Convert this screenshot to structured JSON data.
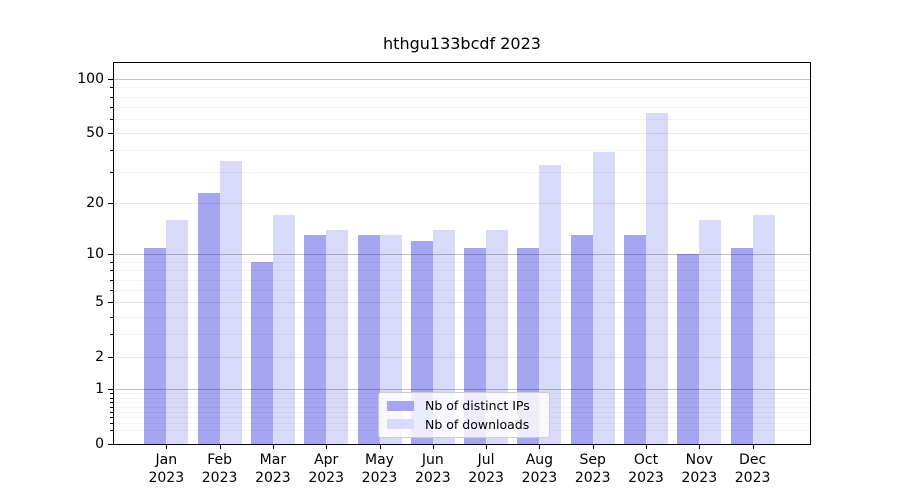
{
  "figure": {
    "background": "#ffffff"
  },
  "chart_data": {
    "type": "bar",
    "title": "hthgu133bcdf 2023",
    "categories": [
      "Jan 2023",
      "Feb 2023",
      "Mar 2023",
      "Apr 2023",
      "May 2023",
      "Jun 2023",
      "Jul 2023",
      "Aug 2023",
      "Sep 2023",
      "Oct 2023",
      "Nov 2023",
      "Dec 2023"
    ],
    "x_months": [
      "Jan",
      "Feb",
      "Mar",
      "Apr",
      "May",
      "Jun",
      "Jul",
      "Aug",
      "Sep",
      "Oct",
      "Nov",
      "Dec"
    ],
    "x_year": "2023",
    "series": [
      {
        "name": "Nb of distinct IPs",
        "color": "#a5a5f2",
        "values": [
          11,
          23,
          9,
          13,
          13,
          12,
          11,
          11,
          13,
          13,
          10,
          11
        ]
      },
      {
        "name": "Nb of downloads",
        "color": "#d9d9fa",
        "values": [
          16,
          35,
          17,
          14,
          13,
          14,
          14,
          33,
          39,
          65,
          16,
          17
        ]
      }
    ],
    "xlabel": "",
    "ylabel": "",
    "yscale": "log10(value+1)",
    "ylim": [
      0,
      124
    ],
    "yticks": [
      0,
      1,
      2,
      5,
      10,
      20,
      50,
      100
    ],
    "yticks_decade": [
      1,
      10,
      100
    ],
    "yticks_minor": [
      0.2,
      0.3,
      0.4,
      0.5,
      0.6,
      0.7,
      0.8,
      0.9,
      3,
      4,
      6,
      7,
      8,
      9,
      30,
      40,
      60,
      70,
      80,
      90
    ],
    "grid": "on",
    "legend_position": "lower center"
  }
}
